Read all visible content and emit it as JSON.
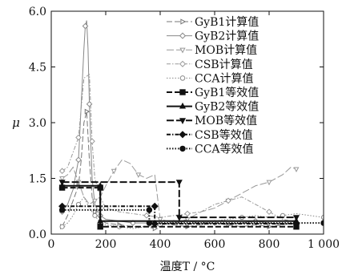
{
  "chart_data": {
    "type": "line",
    "title": "",
    "xlabel": "温度T / °C",
    "ylabel": "μ",
    "xlim": [
      0,
      1000
    ],
    "ylim": [
      0,
      6.0
    ],
    "xticks": [
      0,
      200,
      400,
      600,
      800,
      1000
    ],
    "xtick_labels": [
      "0",
      "200",
      "400",
      "600",
      "800",
      "1 000"
    ],
    "yticks": [
      0,
      1.5,
      3.0,
      4.5,
      6.0
    ],
    "ytick_labels": [
      "0.0",
      "1.5",
      "3.0",
      "4.5",
      "6.0"
    ],
    "grid": false,
    "legend_position": "top-right",
    "series": [
      {
        "name": "GyB1计算值",
        "kind": "computed",
        "dash": "7,3",
        "marker": "triangle-right-open",
        "color": "#777777",
        "x": [
          40,
          60,
          80,
          100,
          110,
          120,
          130,
          140,
          150,
          160,
          180,
          200,
          250,
          300,
          350,
          380,
          400,
          450,
          500,
          550,
          600,
          650,
          700,
          750,
          800,
          850,
          900
        ],
        "y": [
          0.2,
          0.5,
          0.9,
          1.3,
          2.0,
          3.0,
          3.3,
          2.0,
          1.0,
          0.6,
          0.4,
          0.3,
          0.25,
          0.2,
          0.2,
          0.15,
          0.3,
          0.25,
          0.2,
          0.25,
          0.3,
          0.25,
          0.2,
          0.25,
          0.2,
          0.25,
          0.3
        ]
      },
      {
        "name": "GyB2计算值",
        "kind": "computed",
        "dash": "",
        "marker": "diamond-open",
        "color": "#888888",
        "x": [
          40,
          60,
          80,
          100,
          110,
          120,
          125,
          130,
          135,
          140,
          150,
          160,
          180,
          200,
          250,
          300,
          350,
          400,
          450,
          500,
          550,
          600,
          650,
          700,
          750,
          800,
          850,
          900
        ],
        "y": [
          0.6,
          0.8,
          1.2,
          2.0,
          3.5,
          5.0,
          5.6,
          5.75,
          5.0,
          3.5,
          1.5,
          0.8,
          0.5,
          0.4,
          0.35,
          0.3,
          0.3,
          0.25,
          0.3,
          0.35,
          0.3,
          0.3,
          0.25,
          0.3,
          0.35,
          0.3,
          0.25,
          0.3
        ]
      },
      {
        "name": "MOB计算值",
        "kind": "computed",
        "dash": "9,3",
        "marker": "triangle-down-open",
        "color": "#999999",
        "x": [
          40,
          60,
          80,
          100,
          120,
          140,
          160,
          180,
          200,
          230,
          260,
          290,
          320,
          350,
          380,
          400,
          450,
          480,
          500,
          550,
          600,
          650,
          700,
          750,
          800,
          850,
          880,
          900
        ],
        "y": [
          1.5,
          1.6,
          1.8,
          1.4,
          1.0,
          0.8,
          0.9,
          1.0,
          1.3,
          1.7,
          2.0,
          1.9,
          1.6,
          1.5,
          1.6,
          0.4,
          0.3,
          0.35,
          0.4,
          0.6,
          0.7,
          0.9,
          1.1,
          1.3,
          1.4,
          1.6,
          1.8,
          1.75
        ]
      },
      {
        "name": "CSB计算值",
        "kind": "computed",
        "dash": "5,2,1.5,2",
        "marker": "diamond-open",
        "color": "#999999",
        "x": [
          40,
          60,
          80,
          100,
          120,
          140,
          150,
          160,
          180,
          200,
          250,
          300,
          350,
          400,
          450,
          500,
          550,
          600,
          650,
          700,
          750,
          800,
          850,
          880,
          900
        ],
        "y": [
          1.7,
          1.8,
          2.2,
          2.6,
          4.2,
          4.3,
          2.5,
          1.5,
          1.0,
          0.7,
          0.6,
          0.55,
          0.5,
          0.45,
          0.5,
          0.55,
          0.6,
          0.8,
          0.9,
          1.0,
          0.8,
          0.6,
          0.4,
          0.35,
          0.3
        ]
      },
      {
        "name": "CCA计算值",
        "kind": "computed",
        "dash": "1.5,2",
        "marker": "circle-open",
        "color": "#888888",
        "x": [
          40,
          60,
          80,
          100,
          120,
          140,
          160,
          180,
          200,
          250,
          300,
          350,
          400,
          450,
          500,
          550,
          600,
          650,
          700,
          750,
          800,
          850,
          900,
          950,
          1000
        ],
        "y": [
          0.2,
          0.3,
          0.5,
          0.8,
          1.0,
          0.7,
          0.5,
          0.3,
          0.25,
          0.2,
          0.15,
          0.2,
          0.25,
          0.3,
          0.25,
          0.3,
          0.35,
          0.4,
          0.45,
          0.5,
          0.45,
          0.5,
          0.55,
          0.5,
          0.45
        ]
      },
      {
        "name": "GyB1等效值",
        "kind": "equivalent",
        "dash": "7,3",
        "marker": "square",
        "color": "#111111",
        "x": [
          40,
          180,
          180,
          900
        ],
        "y": [
          1.25,
          1.25,
          0.2,
          0.2
        ]
      },
      {
        "name": "GyB2等效值",
        "kind": "equivalent",
        "dash": "",
        "marker": "triangle-up",
        "color": "#111111",
        "x": [
          40,
          180,
          180,
          900
        ],
        "y": [
          1.3,
          1.3,
          0.35,
          0.35
        ]
      },
      {
        "name": "MOB等效值",
        "kind": "equivalent",
        "dash": "9,3",
        "marker": "triangle-down",
        "color": "#111111",
        "x": [
          40,
          470,
          470,
          900
        ],
        "y": [
          1.4,
          1.4,
          0.45,
          0.45
        ]
      },
      {
        "name": "CSB等效值",
        "kind": "equivalent",
        "dash": "5,2,1.5,2",
        "marker": "diamond",
        "color": "#111111",
        "x": [
          40,
          380,
          380,
          900
        ],
        "y": [
          0.75,
          0.75,
          0.28,
          0.28
        ]
      },
      {
        "name": "CCA等效值",
        "kind": "equivalent",
        "dash": "1.5,2",
        "marker": "circle",
        "color": "#111111",
        "x": [
          40,
          360,
          360,
          1000
        ],
        "y": [
          0.65,
          0.65,
          0.3,
          0.3
        ]
      }
    ]
  }
}
